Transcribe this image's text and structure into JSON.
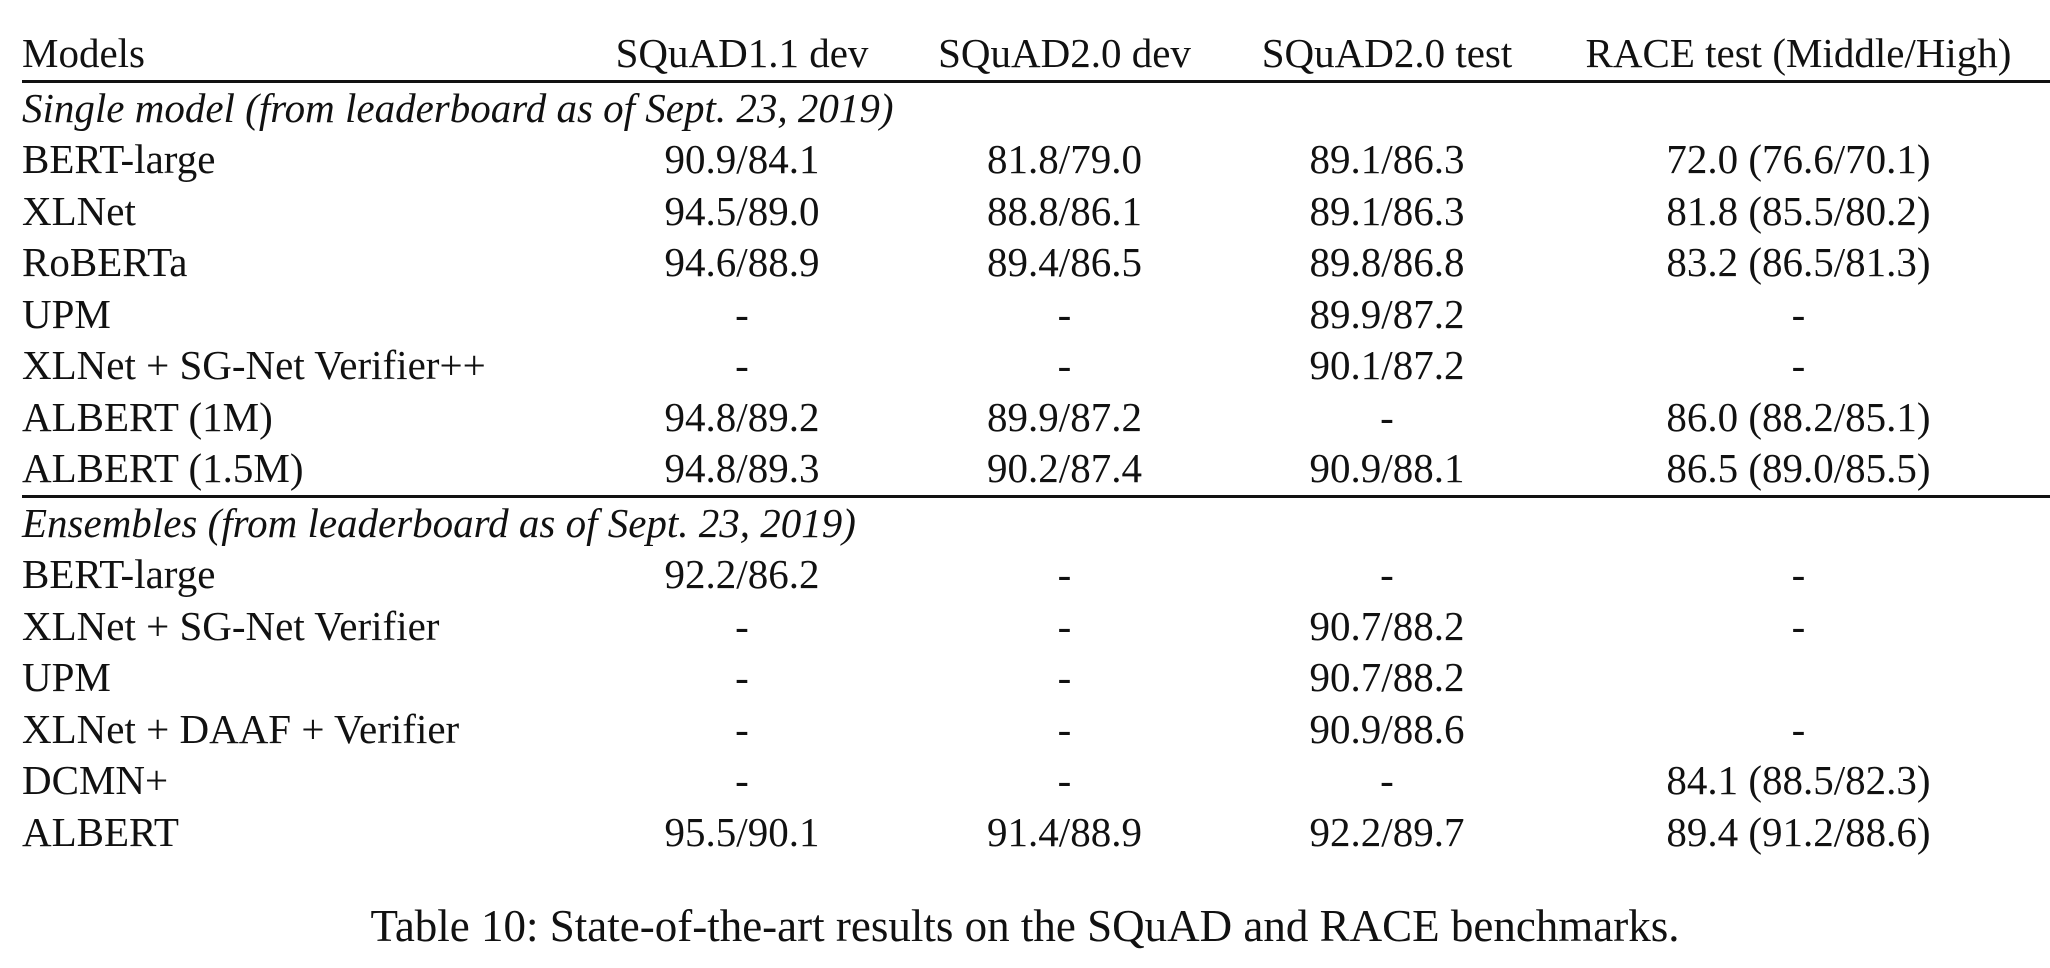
{
  "table": {
    "headers": [
      "Models",
      "SQuAD1.1 dev",
      "SQuAD2.0 dev",
      "SQuAD2.0 test",
      "RACE test (Middle/High)"
    ],
    "sections": [
      {
        "title": "Single model (from leaderboard as of Sept. 23, 2019)",
        "rows": [
          {
            "model": "BERT-large",
            "cells": [
              "90.9/84.1",
              "81.8/79.0",
              "89.1/86.3",
              "72.0 (76.6/70.1)"
            ],
            "bold": false
          },
          {
            "model": "XLNet",
            "cells": [
              "94.5/89.0",
              "88.8/86.1",
              "89.1/86.3",
              "81.8 (85.5/80.2)"
            ],
            "bold": false
          },
          {
            "model": "RoBERTa",
            "cells": [
              "94.6/88.9",
              "89.4/86.5",
              "89.8/86.8",
              "83.2 (86.5/81.3)"
            ],
            "bold": false
          },
          {
            "model": "UPM",
            "cells": [
              "-",
              "-",
              "89.9/87.2",
              "-"
            ],
            "bold": false
          },
          {
            "model": "XLNet + SG-Net Verifier++",
            "cells": [
              "-",
              "-",
              "90.1/87.2",
              "-"
            ],
            "bold": false
          },
          {
            "model": "ALBERT (1M)",
            "cells": [
              "94.8/89.2",
              "89.9/87.2",
              "-",
              "86.0 (88.2/85.1)"
            ],
            "bold": false
          },
          {
            "model": "ALBERT (1.5M)",
            "cells": [
              "94.8/89.3",
              "90.2/87.4",
              "90.9/88.1",
              "86.5 (89.0/85.5)"
            ],
            "bold": true
          }
        ]
      },
      {
        "title": "Ensembles (from leaderboard as of Sept. 23, 2019)",
        "rows": [
          {
            "model": "BERT-large",
            "cells": [
              "92.2/86.2",
              "-",
              "-",
              "-"
            ],
            "bold": false
          },
          {
            "model": "XLNet + SG-Net Verifier",
            "cells": [
              "-",
              "-",
              "90.7/88.2",
              "-"
            ],
            "bold": false
          },
          {
            "model": "UPM",
            "cells": [
              "-",
              "-",
              "90.7/88.2",
              ""
            ],
            "bold": false
          },
          {
            "model": "XLNet + DAAF + Verifier",
            "cells": [
              "-",
              "-",
              "90.9/88.6",
              "-"
            ],
            "bold": false
          },
          {
            "model": "DCMN+",
            "cells": [
              "-",
              "-",
              "-",
              "84.1 (88.5/82.3)"
            ],
            "bold": false
          },
          {
            "model": "ALBERT",
            "cells": [
              "95.5/90.1",
              "91.4/88.9",
              "92.2/89.7",
              "89.4 (91.2/88.6)"
            ],
            "bold": true
          }
        ]
      }
    ]
  },
  "caption": "Table 10: State-of-the-art results on the SQuAD and RACE benchmarks."
}
